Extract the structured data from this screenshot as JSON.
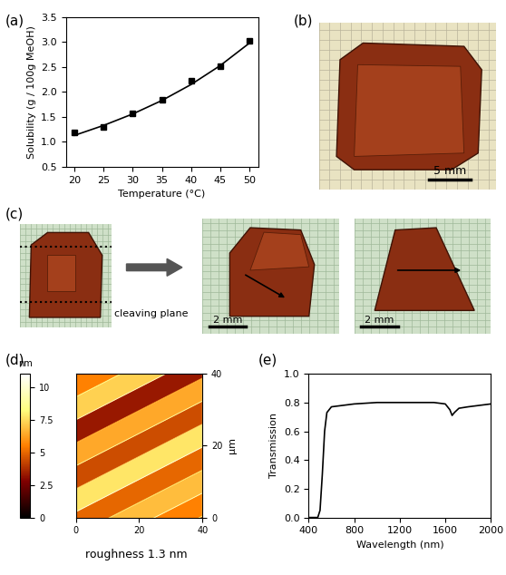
{
  "chart_data": [
    {
      "label": "(a)",
      "type": "scatter",
      "x_label": "Temperature (°C)",
      "y_label": "Solubility (g / 100g MeOH)",
      "x": [
        20,
        25,
        30,
        35,
        40,
        45,
        50
      ],
      "series": [
        {
          "type": "scatter",
          "marker": "square",
          "color": "#000000",
          "values": [
            1.19,
            1.29,
            1.57,
            1.84,
            2.23,
            2.52,
            3.03
          ]
        },
        {
          "type": "line",
          "line_style": "solid",
          "color": "#000000",
          "values": [
            1.13,
            1.33,
            1.56,
            1.83,
            2.15,
            2.53,
            2.98
          ]
        }
      ],
      "xlim": [
        18.5,
        51.5
      ],
      "xticks": [
        20,
        25,
        30,
        35,
        40,
        45,
        50
      ],
      "ylim": [
        0.5,
        3.5
      ],
      "yticks": [
        0.5,
        {
          "value": 1.0,
          "label": "1.0"
        },
        1.5,
        {
          "value": 2.0,
          "label": "2.0"
        },
        2.5,
        {
          "value": 3.0,
          "label": "3.0"
        },
        3.5
      ]
    },
    {
      "label": "(e)",
      "type": "line",
      "x_label": "Wavelength (nm)",
      "y_label": "Transmission",
      "x": [
        400,
        480,
        500,
        520,
        540,
        560,
        600,
        700,
        800,
        1000,
        1200,
        1400,
        1500,
        1600,
        1640,
        1660,
        1680,
        1720,
        1800,
        1900,
        2000
      ],
      "series": [
        {
          "type": "line",
          "line_style": "solid",
          "color": "#000000",
          "values": [
            0.0,
            0.0,
            0.05,
            0.3,
            0.6,
            0.73,
            0.77,
            0.78,
            0.79,
            0.8,
            0.8,
            0.8,
            0.8,
            0.79,
            0.75,
            0.71,
            0.73,
            0.76,
            0.77,
            0.78,
            0.79
          ]
        }
      ],
      "xlim": [
        400,
        2000
      ],
      "xticks": [
        400,
        800,
        1200,
        1600,
        2000
      ],
      "ylim": [
        0.0,
        1.0
      ],
      "yticks": [
        {
          "value": 0.0,
          "label": "0.0"
        },
        0.2,
        0.4,
        0.6,
        0.8,
        {
          "value": 1.0,
          "label": "1.0"
        }
      ]
    }
  ],
  "photos": {
    "b": {
      "label": "(b)",
      "scale_bar": "5 mm"
    },
    "c": {
      "label": "(c)",
      "annotation": "cleaving plane",
      "scale_bars": [
        "2 mm",
        "2 mm"
      ]
    }
  },
  "afm": {
    "label": "(d)",
    "caption": "roughness 1.3 nm",
    "axis_unit": "µm",
    "xlim": [
      0,
      40
    ],
    "xticks": [
      0,
      20,
      40
    ],
    "ylim": [
      0,
      40
    ],
    "yticks": [
      0,
      20,
      40
    ],
    "colorbar": {
      "label": "nm",
      "range": [
        0,
        11
      ],
      "ticks": [
        0,
        2.5,
        5,
        7.5,
        10
      ]
    }
  }
}
